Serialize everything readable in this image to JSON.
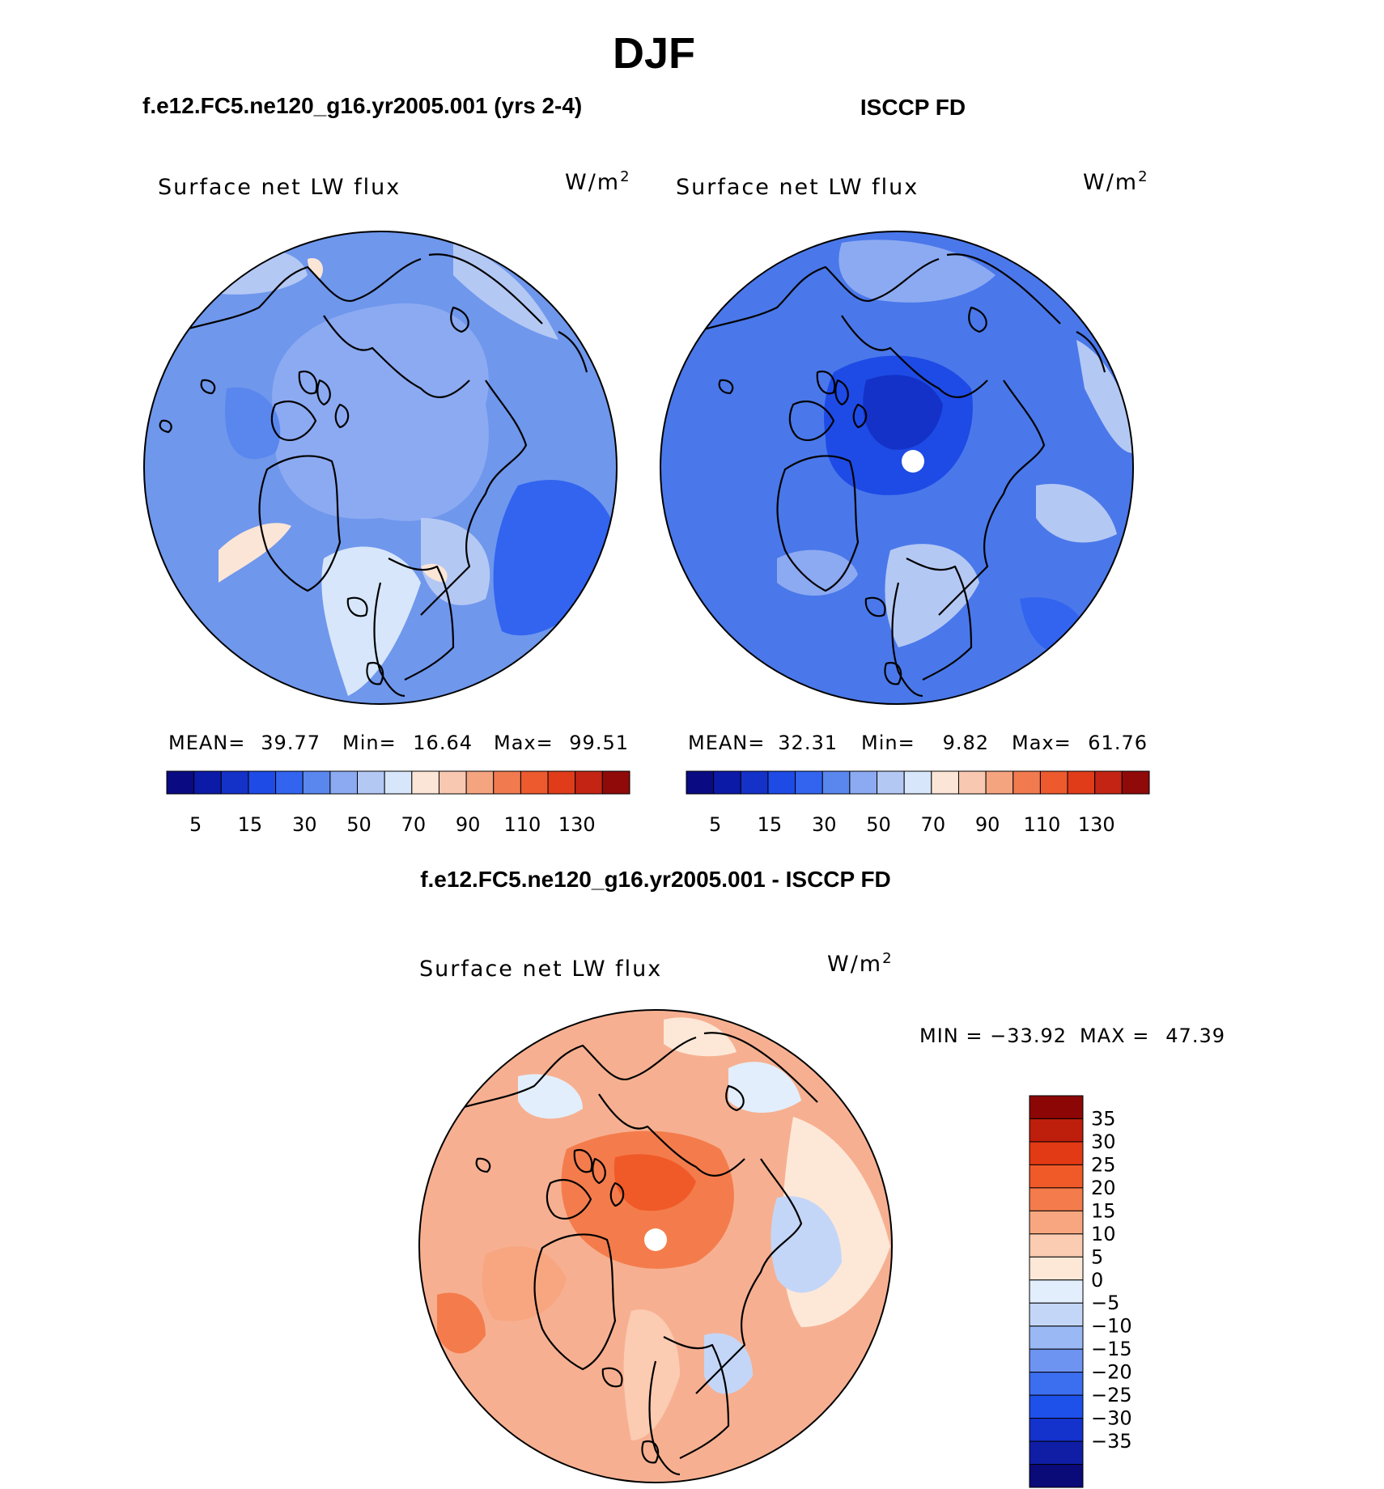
{
  "figure": {
    "season": "DJF",
    "left_title": "f.e12.FC5.ne120_g16.yr2005.001 (yrs 2-4)",
    "right_title": "ISCCP FD",
    "diff_title": "f.e12.FC5.ne120_g16.yr2005.001 - ISCCP FD",
    "variable": "Surface net LW flux",
    "units_base": "W/m",
    "units_exp": "2"
  },
  "colors": {
    "abs_scale": [
      "#0a0a82",
      "#0c1aa8",
      "#1432c8",
      "#1e4be6",
      "#3264f0",
      "#5a87ee",
      "#8caaf2",
      "#b4c8f4",
      "#d7e6fa",
      "#fbe5d6",
      "#f8c8b0",
      "#f4a47f",
      "#f17a4f",
      "#ec5a2e",
      "#e03c1a",
      "#c42414",
      "#900a0a"
    ],
    "diff_scale": [
      "#0a0a78",
      "#0f1ea5",
      "#1432cc",
      "#1e50ea",
      "#3c6ef0",
      "#6e94f2",
      "#9ab8f4",
      "#c4d6f8",
      "#e2eefc",
      "#fde8d8",
      "#fbcbb2",
      "#f8a680",
      "#f47c4c",
      "#f05a28",
      "#e23a14",
      "#be1e0c",
      "#8c0606"
    ],
    "ocean_left": "#6f97ec",
    "ocean_right": "#4a78ea",
    "ocean_diff": "#f6b091"
  },
  "chart_data": [
    {
      "type": "polar_stereographic_map",
      "panel": "model",
      "title": "f.e12.FC5.ne120_g16.yr2005.001 (yrs 2-4)",
      "variable": "Surface net LW flux",
      "units": "W/m2",
      "stats": {
        "mean_label": "MEAN=",
        "mean": "39.77",
        "min_label": "Min=",
        "min": "16.64",
        "max_label": "Max=",
        "max": "99.51"
      },
      "colorbar": {
        "orientation": "horizontal",
        "tick_labels": [
          "5",
          "15",
          "30",
          "50",
          "70",
          "90",
          "110",
          "130"
        ]
      }
    },
    {
      "type": "polar_stereographic_map",
      "panel": "observations",
      "title": "ISCCP FD",
      "variable": "Surface net LW flux",
      "units": "W/m2",
      "stats": {
        "mean_label": "MEAN=",
        "mean": "32.31",
        "min_label": "Min=",
        "min": "9.82",
        "max_label": "Max=",
        "max": "61.76"
      },
      "colorbar": {
        "orientation": "horizontal",
        "tick_labels": [
          "5",
          "15",
          "30",
          "50",
          "70",
          "90",
          "110",
          "130"
        ]
      }
    },
    {
      "type": "polar_stereographic_map",
      "panel": "difference",
      "title": "f.e12.FC5.ne120_g16.yr2005.001 - ISCCP FD",
      "variable": "Surface net LW flux",
      "units": "W/m2",
      "stats": {
        "min_label": "MIN =",
        "min": "−33.92",
        "max_label": "MAX =",
        "max": "47.39"
      },
      "colorbar": {
        "orientation": "vertical",
        "tick_labels": [
          "35",
          "30",
          "25",
          "20",
          "15",
          "10",
          "5",
          "0",
          "−5",
          "−10",
          "−15",
          "−20",
          "−25",
          "−30",
          "−35"
        ]
      }
    }
  ]
}
